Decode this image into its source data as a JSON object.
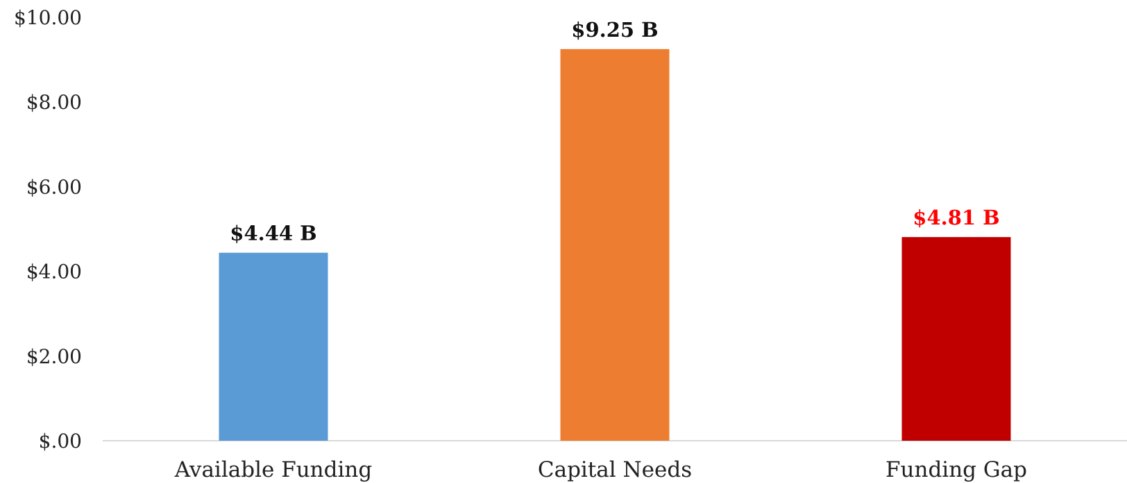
{
  "chart_data": {
    "type": "bar",
    "title": "",
    "xlabel": "",
    "ylabel": "",
    "categories": [
      "Available Funding",
      "Capital Needs",
      "Funding Gap"
    ],
    "values": [
      4.44,
      9.25,
      4.81
    ],
    "data_labels": [
      "$4.44 B",
      "$9.25 B",
      "$4.81 B"
    ],
    "bar_colors": [
      "#5b9bd5",
      "#ed7d31",
      "#c00000"
    ],
    "label_colors": [
      "#111111",
      "#111111",
      "#ff0000"
    ],
    "ylim": [
      0,
      10
    ],
    "yticks": [
      0,
      2,
      4,
      6,
      8,
      10
    ],
    "ytick_labels": [
      "$.00",
      "$2.00",
      "$4.00",
      "$6.00",
      "$8.00",
      "$10.00"
    ],
    "grid": false,
    "legend": "none"
  }
}
